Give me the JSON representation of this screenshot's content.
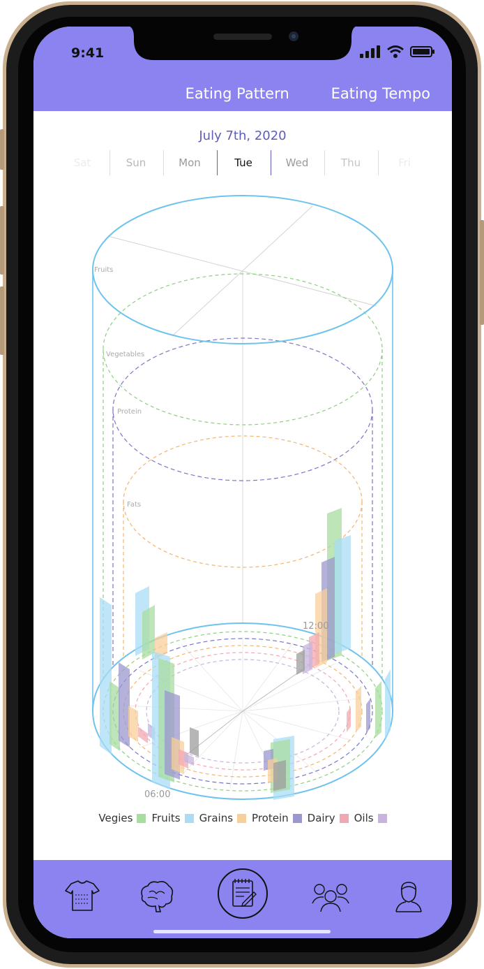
{
  "status_bar": {
    "time": "9:41"
  },
  "header": {
    "tabs": [
      {
        "label": "Eating Pattern"
      },
      {
        "label": "Eating Tempo"
      }
    ]
  },
  "date": {
    "label": "July 7th, 2020"
  },
  "days": [
    {
      "label": "Sat",
      "state": "faded"
    },
    {
      "label": "Sun",
      "state": "normal"
    },
    {
      "label": "Mon",
      "state": "normal"
    },
    {
      "label": "Tue",
      "state": "selected"
    },
    {
      "label": "Wed",
      "state": "normal"
    },
    {
      "label": "Thu",
      "state": "faded"
    },
    {
      "label": "Fri",
      "state": "faded"
    }
  ],
  "chart": {
    "ring_labels": [
      "Fruits",
      "Vegetables",
      "Protein",
      "Fats"
    ],
    "time_labels": [
      "12:00",
      "06:00"
    ]
  },
  "legend": [
    {
      "label": "Vegies",
      "color": "#a8dca0"
    },
    {
      "label": "Fruits",
      "color": "#aadcf5"
    },
    {
      "label": "Grains",
      "color": "#f8cf9a"
    },
    {
      "label": "Protein",
      "color": "#9b97cf"
    },
    {
      "label": "Dairy",
      "color": "#f2a8b3"
    },
    {
      "label": "Oils",
      "color": "#c6b4dd"
    }
  ],
  "bottom_nav": [
    {
      "icon": "clothing-icon"
    },
    {
      "icon": "brain-icon"
    },
    {
      "icon": "notepad-icon"
    },
    {
      "icon": "group-icon"
    },
    {
      "icon": "person-icon"
    }
  ],
  "colors": {
    "accent": "#8b84f0",
    "date": "#5e5cb8",
    "cylinder_outline": "#6ec3ee",
    "ring_vegetables": "#8ccf7f",
    "ring_protein": "#7a76c6",
    "ring_fats": "#f5b36a"
  }
}
